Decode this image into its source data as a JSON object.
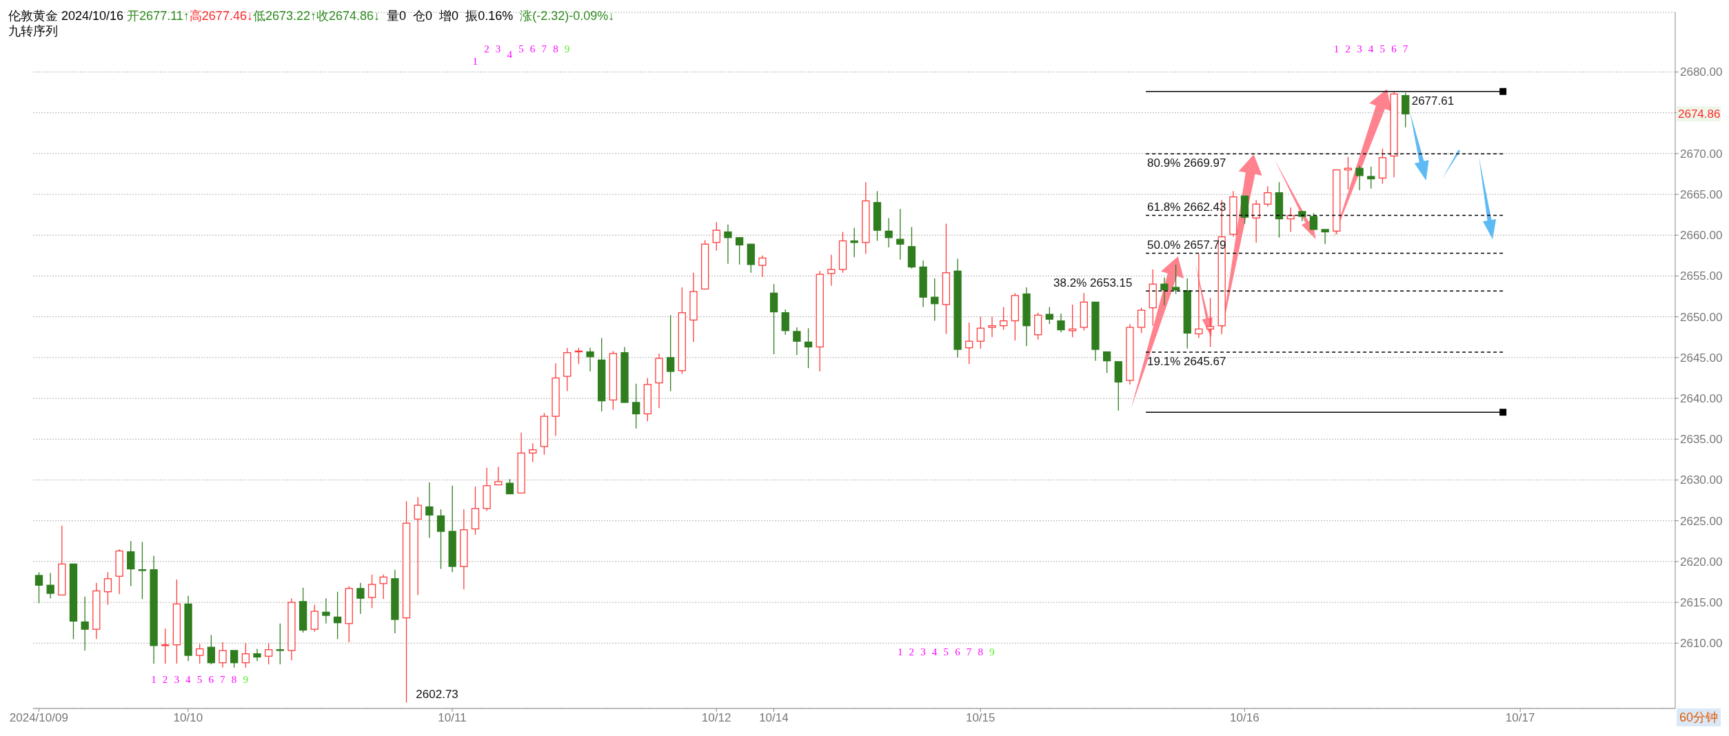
{
  "chart_data": {
    "type": "candlestick",
    "title": "伦敦黄金 2024/10/16",
    "subtitle": "九转序列",
    "annotations": [
      "开2677.11↑",
      "高2677.46↓",
      "低2673.22↑",
      "收2674.86↓",
      "量0",
      "仓0",
      "增0",
      "振0.16%",
      "涨(-2.32)-0.09%↓",
      "60分钟",
      "2674.86",
      "2602.73",
      "1",
      "2",
      "3",
      "4",
      "5",
      "6",
      "7",
      "8",
      "9",
      "1",
      "2",
      "3",
      "4",
      "5",
      "6",
      "7",
      "8",
      "9",
      "1",
      "2",
      "3",
      "4",
      "5",
      "6",
      "7",
      "8",
      "9",
      "1",
      "2",
      "3",
      "4",
      "5",
      "6",
      "7"
    ],
    "categories": [
      "2024/10/09",
      null,
      null,
      null,
      null,
      null,
      null,
      null,
      null,
      null,
      null,
      null,
      null,
      "10/10",
      null,
      null,
      null,
      null,
      null,
      null,
      null,
      null,
      null,
      null,
      null,
      null,
      null,
      null,
      null,
      null,
      null,
      null,
      null,
      null,
      null,
      null,
      "10/11",
      null,
      null,
      null,
      null,
      null,
      null,
      null,
      null,
      null,
      null,
      null,
      null,
      null,
      null,
      null,
      null,
      null,
      null,
      null,
      null,
      null,
      null,
      "10/12",
      null,
      null,
      null,
      null,
      "10/14",
      null,
      null,
      null,
      null,
      null,
      null,
      null,
      null,
      null,
      null,
      null,
      null,
      null,
      null,
      null,
      null,
      null,
      "10/15",
      null,
      null,
      null,
      null,
      null,
      null,
      null,
      null,
      null,
      null,
      null,
      null,
      null,
      null,
      null,
      null,
      null,
      null,
      null,
      null,
      null,
      null,
      "10/16",
      null,
      null,
      null,
      null,
      null,
      null,
      null,
      null,
      null,
      null,
      null,
      null,
      null,
      null,
      null,
      null,
      null,
      null,
      null,
      null,
      null,
      null,
      null,
      "10/17",
      null,
      null,
      null,
      null,
      null,
      null,
      null,
      null,
      null,
      null,
      null,
      null,
      null
    ],
    "ohlc": [
      [
        2618.3,
        2618.7,
        2614.9,
        2617.1
      ],
      [
        2617.1,
        2618.6,
        2615.5,
        2616.1
      ],
      [
        2615.9,
        2624.4,
        2615.9,
        2619.7
      ],
      [
        2619.7,
        2619.7,
        2610.5,
        2612.7
      ],
      [
        2612.6,
        2615.7,
        2609.1,
        2611.7
      ],
      [
        2611.7,
        2617.4,
        2610.5,
        2616.4
      ],
      [
        2616.3,
        2618.7,
        2614.7,
        2617.9
      ],
      [
        2618.2,
        2621.5,
        2616.0,
        2621.3
      ],
      [
        2621.2,
        2622.5,
        2617.0,
        2619.1
      ],
      [
        2619.0,
        2622.4,
        2615.4,
        2618.9
      ],
      [
        2619.0,
        2620.7,
        2607.5,
        2609.7
      ],
      [
        2609.7,
        2611.8,
        2607.5,
        2609.8
      ],
      [
        2609.8,
        2617.8,
        2607.5,
        2614.8
      ],
      [
        2614.8,
        2615.8,
        2607.8,
        2608.5
      ],
      [
        2608.5,
        2609.9,
        2607.5,
        2609.3
      ],
      [
        2609.5,
        2611.0,
        2607.4,
        2607.6
      ],
      [
        2607.6,
        2610.1,
        2607.0,
        2609.1
      ],
      [
        2609.1,
        2609.1,
        2607.0,
        2607.6
      ],
      [
        2607.6,
        2610.0,
        2607.0,
        2608.7
      ],
      [
        2608.7,
        2609.3,
        2607.8,
        2608.3
      ],
      [
        2608.4,
        2610.0,
        2607.4,
        2609.2
      ],
      [
        2609.2,
        2612.4,
        2607.4,
        2609.1
      ],
      [
        2609.1,
        2615.5,
        2607.9,
        2615.0
      ],
      [
        2615.1,
        2616.8,
        2611.3,
        2611.6
      ],
      [
        2611.7,
        2614.7,
        2611.4,
        2613.9
      ],
      [
        2613.8,
        2615.5,
        2612.4,
        2613.4
      ],
      [
        2613.2,
        2616.3,
        2610.5,
        2612.5
      ],
      [
        2612.4,
        2617.0,
        2610.1,
        2616.7
      ],
      [
        2616.7,
        2617.4,
        2613.6,
        2615.5
      ],
      [
        2615.6,
        2618.4,
        2614.3,
        2617.2
      ],
      [
        2617.3,
        2618.4,
        2615.4,
        2618.1
      ],
      [
        2617.9,
        2619.0,
        2611.2,
        2612.9
      ],
      [
        2613.1,
        2627.4,
        2602.73,
        2624.7
      ],
      [
        2625.2,
        2627.9,
        2615.9,
        2626.9
      ],
      [
        2626.7,
        2629.7,
        2622.9,
        2625.7
      ],
      [
        2625.6,
        2626.4,
        2619.1,
        2623.7
      ],
      [
        2623.7,
        2629.3,
        2618.7,
        2619.4
      ],
      [
        2619.4,
        2626.4,
        2616.6,
        2623.9
      ],
      [
        2624.0,
        2629.2,
        2623.3,
        2626.5
      ],
      [
        2626.5,
        2631.5,
        2626.2,
        2629.3
      ],
      [
        2629.4,
        2631.6,
        2629.3,
        2629.8
      ],
      [
        2629.6,
        2630.1,
        2628.2,
        2628.3
      ],
      [
        2628.4,
        2635.8,
        2628.3,
        2633.3
      ],
      [
        2633.3,
        2634.5,
        2632.2,
        2633.7
      ],
      [
        2634.1,
        2638.2,
        2633.1,
        2637.8
      ],
      [
        2637.8,
        2644.3,
        2635.4,
        2642.5
      ],
      [
        2642.7,
        2646.2,
        2640.9,
        2645.6
      ],
      [
        2645.7,
        2646.2,
        2644.2,
        2645.8
      ],
      [
        2645.7,
        2646.2,
        2643.3,
        2645.1
      ],
      [
        2644.7,
        2647.4,
        2638.4,
        2639.7
      ],
      [
        2639.8,
        2645.8,
        2638.6,
        2645.5
      ],
      [
        2645.6,
        2646.3,
        2639.4,
        2639.5
      ],
      [
        2639.5,
        2641.8,
        2636.3,
        2638.1
      ],
      [
        2638.1,
        2642.5,
        2637.2,
        2641.7
      ],
      [
        2641.9,
        2645.5,
        2638.8,
        2644.9
      ],
      [
        2645.0,
        2650.2,
        2640.9,
        2643.3
      ],
      [
        2643.4,
        2653.6,
        2643.0,
        2650.5
      ],
      [
        2649.6,
        2655.4,
        2646.9,
        2653.1
      ],
      [
        2653.4,
        2659.4,
        2653.4,
        2658.9
      ],
      [
        2659.1,
        2661.6,
        2658.1,
        2660.6
      ],
      [
        2660.4,
        2661.3,
        2656.5,
        2659.7
      ],
      [
        2659.7,
        2659.7,
        2656.4,
        2658.8
      ],
      [
        2658.9,
        2659.0,
        2655.4,
        2656.4
      ],
      [
        2656.3,
        2657.5,
        2654.9,
        2657.2
      ],
      [
        2652.9,
        2654.0,
        2645.4,
        2650.6
      ],
      [
        2650.5,
        2650.9,
        2647.8,
        2648.3
      ],
      [
        2648.2,
        2648.7,
        2645.3,
        2647.0
      ],
      [
        2646.9,
        2648.6,
        2643.7,
        2646.3
      ],
      [
        2646.3,
        2655.6,
        2643.3,
        2655.2
      ],
      [
        2655.3,
        2657.6,
        2653.8,
        2655.8
      ],
      [
        2655.8,
        2660.4,
        2655.4,
        2659.3
      ],
      [
        2659.3,
        2660.9,
        2657.3,
        2659.1
      ],
      [
        2659.1,
        2666.5,
        2657.7,
        2664.2
      ],
      [
        2664.0,
        2665.4,
        2659.3,
        2660.6
      ],
      [
        2660.5,
        2662.1,
        2658.5,
        2659.7
      ],
      [
        2659.5,
        2663.2,
        2657.0,
        2658.9
      ],
      [
        2658.6,
        2661.0,
        2655.9,
        2656.1
      ],
      [
        2656.1,
        2656.9,
        2651.2,
        2652.4
      ],
      [
        2652.4,
        2654.7,
        2649.5,
        2651.6
      ],
      [
        2651.5,
        2661.4,
        2647.9,
        2655.4
      ],
      [
        2655.6,
        2657.1,
        2645.0,
        2646.0
      ],
      [
        2646.2,
        2649.3,
        2644.2,
        2647.0
      ],
      [
        2647.0,
        2650.0,
        2646.1,
        2648.6
      ],
      [
        2648.7,
        2650.0,
        2647.5,
        2648.9
      ],
      [
        2648.9,
        2651.2,
        2648.4,
        2649.5
      ],
      [
        2649.5,
        2652.9,
        2647.1,
        2652.6
      ],
      [
        2652.8,
        2653.6,
        2646.4,
        2648.9
      ],
      [
        2647.8,
        2650.5,
        2647.2,
        2650.2
      ],
      [
        2650.3,
        2651.2,
        2649.1,
        2649.7
      ],
      [
        2649.5,
        2650.4,
        2648.1,
        2648.4
      ],
      [
        2648.3,
        2651.5,
        2647.5,
        2648.5
      ],
      [
        2648.7,
        2652.9,
        2648.3,
        2651.8
      ],
      [
        2651.8,
        2651.8,
        2644.6,
        2646.0
      ],
      [
        2645.7,
        2645.7,
        2643.1,
        2644.6
      ],
      [
        2644.5,
        2644.5,
        2638.5,
        2642.0
      ],
      [
        2642.2,
        2649.1,
        2641.7,
        2648.7
      ],
      [
        2648.7,
        2651.1,
        2648.0,
        2650.8
      ],
      [
        2651.1,
        2655.8,
        2648.9,
        2654.0
      ],
      [
        2654.0,
        2654.8,
        2651.4,
        2653.3
      ],
      [
        2653.6,
        2656.4,
        2652.8,
        2653.3
      ],
      [
        2653.2,
        2654.7,
        2646.1,
        2648.0
      ],
      [
        2647.9,
        2657.7,
        2647.4,
        2648.5
      ],
      [
        2648.5,
        2652.3,
        2646.3,
        2648.8
      ],
      [
        2648.9,
        2664.3,
        2647.9,
        2659.8
      ],
      [
        2660.1,
        2665.4,
        2659.8,
        2664.7
      ],
      [
        2664.8,
        2664.8,
        2661.4,
        2662.2
      ],
      [
        2662.1,
        2664.3,
        2659.1,
        2663.8
      ],
      [
        2663.8,
        2666.0,
        2663.5,
        2665.2
      ],
      [
        2665.2,
        2666.5,
        2659.7,
        2662.0
      ],
      [
        2662.0,
        2663.4,
        2660.4,
        2662.4
      ],
      [
        2662.9,
        2662.9,
        2661.7,
        2662.3
      ],
      [
        2662.3,
        2662.7,
        2660.6,
        2660.7
      ],
      [
        2660.7,
        2660.7,
        2658.9,
        2660.4
      ],
      [
        2660.5,
        2668.1,
        2660.1,
        2668.0
      ],
      [
        2668.0,
        2669.6,
        2665.6,
        2668.2
      ],
      [
        2668.2,
        2668.5,
        2665.5,
        2667.3
      ],
      [
        2667.2,
        2668.4,
        2665.7,
        2666.9
      ],
      [
        2667.0,
        2670.6,
        2666.3,
        2669.5
      ],
      [
        2669.7,
        2677.6,
        2667.1,
        2677.3
      ],
      [
        2677.11,
        2677.46,
        2673.22,
        2674.86
      ],
      null,
      null,
      null,
      null,
      null,
      null,
      null,
      null,
      null,
      null,
      null,
      null,
      null,
      null,
      null,
      null,
      null,
      null,
      null,
      null,
      null,
      null,
      null
    ],
    "colors": [
      "#2f7d1e",
      "#2f7d1e",
      "#ff3b3b",
      "#2f7d1e",
      "#2f7d1e",
      "#ff3b3b",
      "#ff3b3b",
      "#ff3b3b",
      "#2f7d1e",
      "#2f7d1e",
      "#2f7d1e",
      "#ff3b3b",
      "#ff3b3b",
      "#2f7d1e",
      "#ff3b3b",
      "#2f7d1e",
      "#ff3b3b",
      "#2f7d1e",
      "#ff3b3b",
      "#2f7d1e",
      "#ff3b3b",
      "#2f7d1e",
      "#ff3b3b",
      "#2f7d1e",
      "#ff3b3b",
      "#2f7d1e",
      "#2f7d1e",
      "#ff3b3b",
      "#2f7d1e",
      "#ff3b3b",
      "#ff3b3b",
      "#2f7d1e",
      "#ff3b3b",
      "#ff3b3b",
      "#2f7d1e",
      "#2f7d1e",
      "#2f7d1e",
      "#ff3b3b",
      "#ff3b3b",
      "#ff3b3b",
      "#ff3b3b",
      "#2f7d1e",
      "#ff3b3b",
      "#ff3b3b",
      "#ff3b3b",
      "#ff3b3b",
      "#ff3b3b",
      "#ff3b3b",
      "#2f7d1e",
      "#2f7d1e",
      "#ff3b3b",
      "#2f7d1e",
      "#2f7d1e",
      "#ff3b3b",
      "#ff3b3b",
      "#2f7d1e",
      "#ff3b3b",
      "#ff3b3b",
      "#ff3b3b",
      "#ff3b3b",
      "#2f7d1e",
      "#2f7d1e",
      "#2f7d1e",
      "#ff3b3b",
      "#2f7d1e",
      "#2f7d1e",
      "#2f7d1e",
      "#2f7d1e",
      "#ff3b3b",
      "#ff3b3b",
      "#ff3b3b",
      "#2f7d1e",
      "#ff3b3b",
      "#2f7d1e",
      "#2f7d1e",
      "#2f7d1e",
      "#2f7d1e",
      "#2f7d1e",
      "#2f7d1e",
      "#ff3b3b",
      "#2f7d1e",
      "#ff3b3b",
      "#ff3b3b",
      "#ff3b3b",
      "#ff3b3b",
      "#ff3b3b",
      "#2f7d1e",
      "#ff3b3b",
      "#2f7d1e",
      "#2f7d1e",
      "#ff3b3b",
      "#ff3b3b",
      "#2f7d1e",
      "#2f7d1e",
      "#2f7d1e",
      "#ff3b3b",
      "#ff3b3b",
      "#ff3b3b",
      "#2f7d1e",
      "#2f7d1e",
      "#2f7d1e",
      "#ff3b3b",
      "#ff3b3b",
      "#ff3b3b",
      "#ff3b3b",
      "#2f7d1e",
      "#ff3b3b",
      "#ff3b3b",
      "#2f7d1e",
      "#ff3b3b",
      "#2f7d1e",
      "#2f7d1e",
      "#2f7d1e",
      "#ff3b3b",
      "#ff3b3b",
      "#2f7d1e",
      "#2f7d1e",
      "#ff3b3b",
      "#ff3b3b",
      "#2f7d1e",
      null,
      null,
      null,
      null,
      null,
      null,
      null,
      null,
      null,
      null,
      null,
      null,
      null,
      null,
      null,
      null,
      null,
      null,
      null,
      null,
      null,
      null,
      null
    ],
    "ylim": [
      2602,
      2687.3
    ],
    "yticks": [
      {
        "value": 2610,
        "label": "2610.00"
      },
      {
        "value": 2615,
        "label": "2615.00"
      },
      {
        "value": 2620,
        "label": "2620.00"
      },
      {
        "value": 2625,
        "label": "2625.00"
      },
      {
        "value": 2630,
        "label": "2630.00"
      },
      {
        "value": 2635,
        "label": "2635.00"
      },
      {
        "value": 2640,
        "label": "2640.00"
      },
      {
        "value": 2645,
        "label": "2645.00"
      },
      {
        "value": 2650,
        "label": "2650.00"
      },
      {
        "value": 2655,
        "label": "2655.00"
      },
      {
        "value": 2660,
        "label": "2660.00"
      },
      {
        "value": 2665,
        "label": "2665.00"
      },
      {
        "value": 2670,
        "label": "2670.00"
      },
      {
        "value": 2675,
        "label": null
      },
      {
        "value": 2680,
        "label": "2680.00"
      }
    ],
    "grid": "y",
    "ref_lines": [
      {
        "axis": "y",
        "value": 2677.61,
        "label": "2677.61",
        "line_style": "solid",
        "color": "#000000"
      },
      {
        "axis": "y",
        "value": 2669.97,
        "label": "80.9% 2669.97",
        "line_style": "dashed",
        "color": "#000000"
      },
      {
        "axis": "y",
        "value": 2662.43,
        "label": "61.8% 2662.43",
        "line_style": "dashed",
        "color": "#000000"
      },
      {
        "axis": "y",
        "value": 2657.79,
        "label": "50.0% 2657.79",
        "line_style": "dashed",
        "color": "#000000"
      },
      {
        "axis": "y",
        "value": 2653.15,
        "label": "38.2% 2653.15",
        "line_style": "dashed",
        "color": "#000000"
      },
      {
        "axis": "y",
        "value": 2645.67,
        "label": "19.1% 2645.67",
        "line_style": "dashed",
        "color": "#000000"
      },
      {
        "axis": "y",
        "value": 2638.3,
        "line_style": "solid",
        "color": "#000000"
      }
    ]
  }
}
